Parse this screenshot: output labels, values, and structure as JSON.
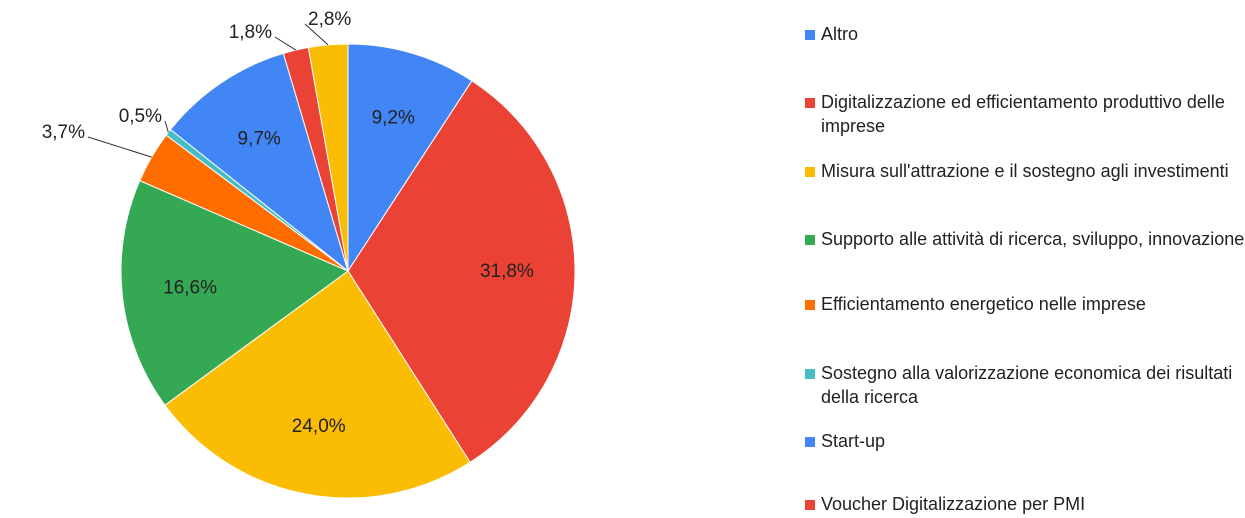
{
  "chart_data": {
    "type": "pie",
    "categories": [
      "Altro",
      "Digitalizzazione ed efficientamento produttivo delle imprese",
      "Misura sull'attrazione e il sostegno agli investimenti",
      "Supporto alle attività di ricerca, sviluppo, innovazione",
      "Efficientamento energetico nelle imprese",
      "Sostegno alla valorizzazione economica dei risultati della ricerca",
      "Start-up",
      "Voucher Digitalizzazione per PMI",
      null
    ],
    "values": [
      9.2,
      31.8,
      24.0,
      16.6,
      3.7,
      0.5,
      9.7,
      1.8,
      2.8
    ],
    "value_labels": [
      "9,2%",
      "31,8%",
      "24,0%",
      "16,6%",
      "3,7%",
      "0,5%",
      "9,7%",
      "1,8%",
      "2,8%"
    ],
    "colors": [
      "#4285f4",
      "#ea4335",
      "#fbbc04",
      "#34a853",
      "#ff6d01",
      "#46bdc6",
      "#4285f4",
      "#ea4335",
      "#fbbc04"
    ],
    "legend": "right"
  }
}
